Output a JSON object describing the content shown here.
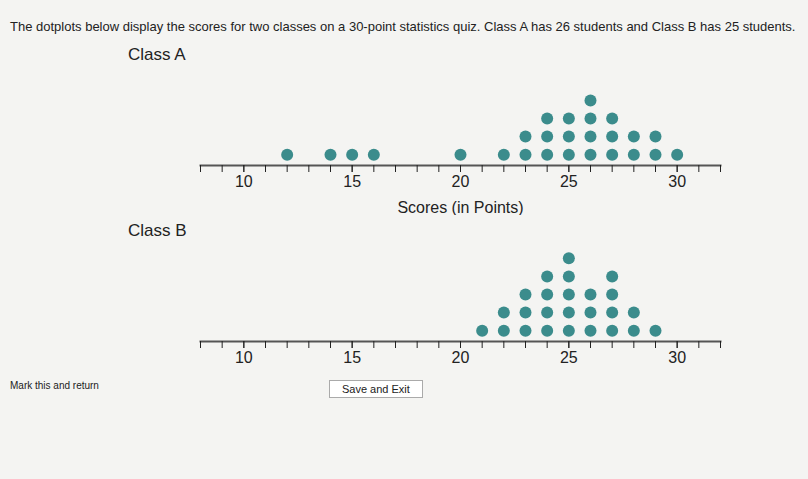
{
  "header": "The dotplots below display the scores for two classes on a 30-point statistics quiz. Class A has 26 students and Class B has 25 students.",
  "footer": [
    "Mark this and return",
    "Save and Exit"
  ],
  "chart_data": [
    {
      "type": "dot",
      "title": "Class A",
      "xlabel": "Scores (in Points)",
      "x": [
        12,
        14,
        15,
        16,
        20,
        22,
        23,
        24,
        25,
        26,
        27,
        28,
        29,
        30
      ],
      "values": [
        1,
        1,
        1,
        1,
        1,
        1,
        2,
        3,
        3,
        4,
        3,
        2,
        2,
        1
      ],
      "xlim": [
        8,
        32
      ],
      "xticks": [
        10,
        15,
        20,
        25,
        30
      ],
      "color": "#3b8c8c"
    },
    {
      "type": "dot",
      "title": "Class B",
      "x": [
        21,
        22,
        23,
        24,
        25,
        26,
        27,
        28,
        29
      ],
      "values": [
        1,
        2,
        3,
        4,
        5,
        3,
        4,
        2,
        1
      ],
      "xlim": [
        8,
        32
      ],
      "xticks": [
        10,
        15,
        20,
        25,
        30
      ],
      "color": "#3b8c8c"
    }
  ]
}
